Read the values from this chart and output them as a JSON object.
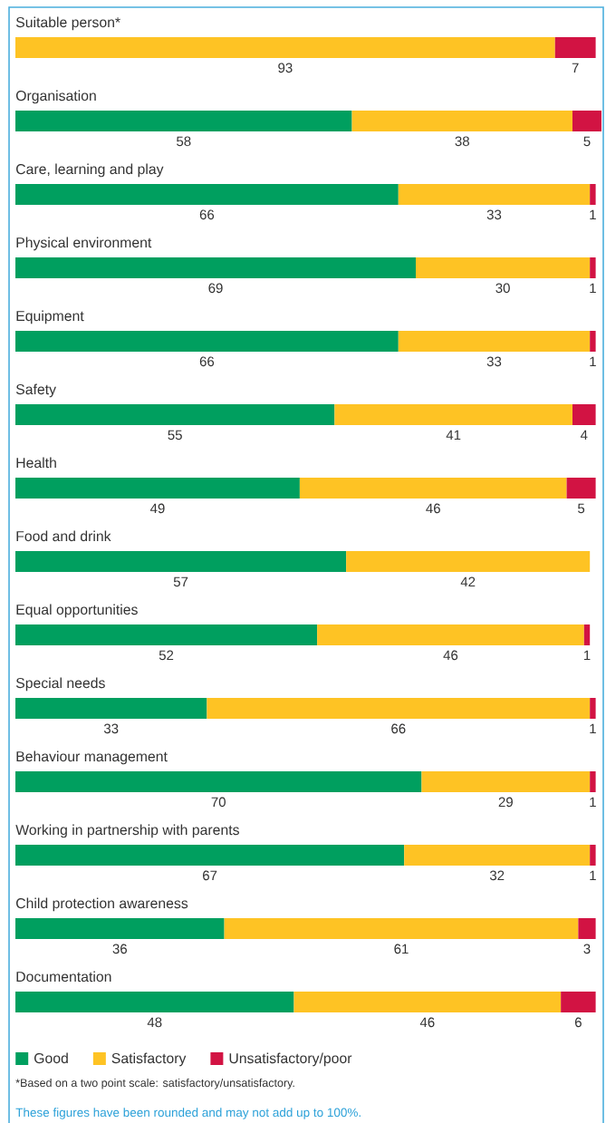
{
  "chart_data": {
    "type": "bar",
    "orientation": "horizontal",
    "stacked": true,
    "data_labels": true,
    "tick_labels": "y",
    "legend": "bottom",
    "categories": [
      "Suitable person*",
      "Organisation",
      "Care, learning and play",
      "Physical environment",
      "Equipment",
      "Safety",
      "Health",
      "Food and drink",
      "Equal opportunities",
      "Special needs",
      "Behaviour management",
      "Working in partnership with parents",
      "Child protection awareness",
      "Documentation"
    ],
    "series": [
      {
        "name": "Good",
        "color": "#009f5f",
        "values": [
          null,
          58,
          66,
          69,
          66,
          55,
          49,
          57,
          52,
          33,
          70,
          67,
          36,
          48
        ]
      },
      {
        "name": "Satisfactory",
        "color": "#fec324",
        "values": [
          93,
          38,
          33,
          30,
          33,
          41,
          46,
          42,
          46,
          66,
          29,
          32,
          61,
          46
        ]
      },
      {
        "name": "Unsatisfactory/poor",
        "color": "#d21343",
        "values": [
          7,
          5,
          1,
          1,
          1,
          4,
          5,
          null,
          1,
          1,
          1,
          1,
          3,
          6
        ]
      }
    ],
    "annotations": [
      "*Based on a two point scale: satisfactory/unsatisfactory.",
      "These figures have been rounded and may not add up to 100%."
    ]
  }
}
